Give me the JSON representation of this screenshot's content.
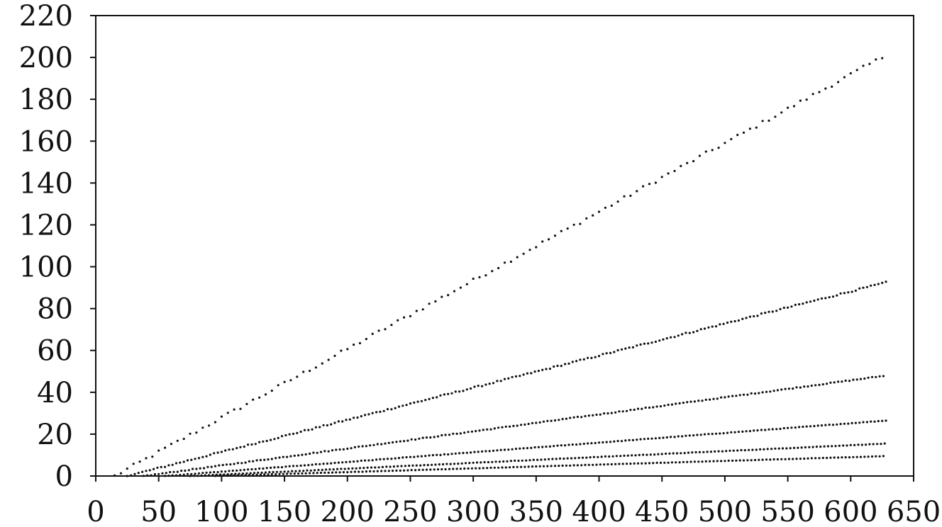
{
  "chart_data": {
    "type": "scatter",
    "title": "",
    "xlabel": "",
    "ylabel": "",
    "xlim": [
      0,
      650
    ],
    "ylim": [
      0,
      220
    ],
    "x_ticks": [
      "0",
      "50",
      "100",
      "150",
      "200",
      "250",
      "300",
      "350",
      "400",
      "450",
      "500",
      "550",
      "600",
      "650"
    ],
    "y_ticks": [
      "0",
      "20",
      "40",
      "60",
      "80",
      "100",
      "120",
      "140",
      "160",
      "180",
      "200",
      "220"
    ],
    "grid": false,
    "legend": "none",
    "colors": {
      "points": "#111111",
      "axes": "#111111"
    },
    "series": [
      {
        "x_start": 15,
        "x_end": 628,
        "step": 5,
        "y_start": 0,
        "y_end": 201,
        "jitter": 0.9
      },
      {
        "x_start": 25,
        "x_end": 628,
        "step": 3,
        "y_start": 0,
        "y_end": 92.5,
        "jitter": 0.35
      },
      {
        "x_start": 38,
        "x_end": 628,
        "step": 3,
        "y_start": 0,
        "y_end": 48,
        "jitter": 0.2
      },
      {
        "x_start": 55,
        "x_end": 628,
        "step": 3,
        "y_start": 0,
        "y_end": 26.5,
        "jitter": 0.1
      },
      {
        "x_start": 75,
        "x_end": 628,
        "step": 3,
        "y_start": 0,
        "y_end": 15.5,
        "jitter": 0.08
      },
      {
        "x_start": 95,
        "x_end": 628,
        "step": 3,
        "y_start": 0,
        "y_end": 9.5,
        "jitter": 0.05
      }
    ]
  }
}
